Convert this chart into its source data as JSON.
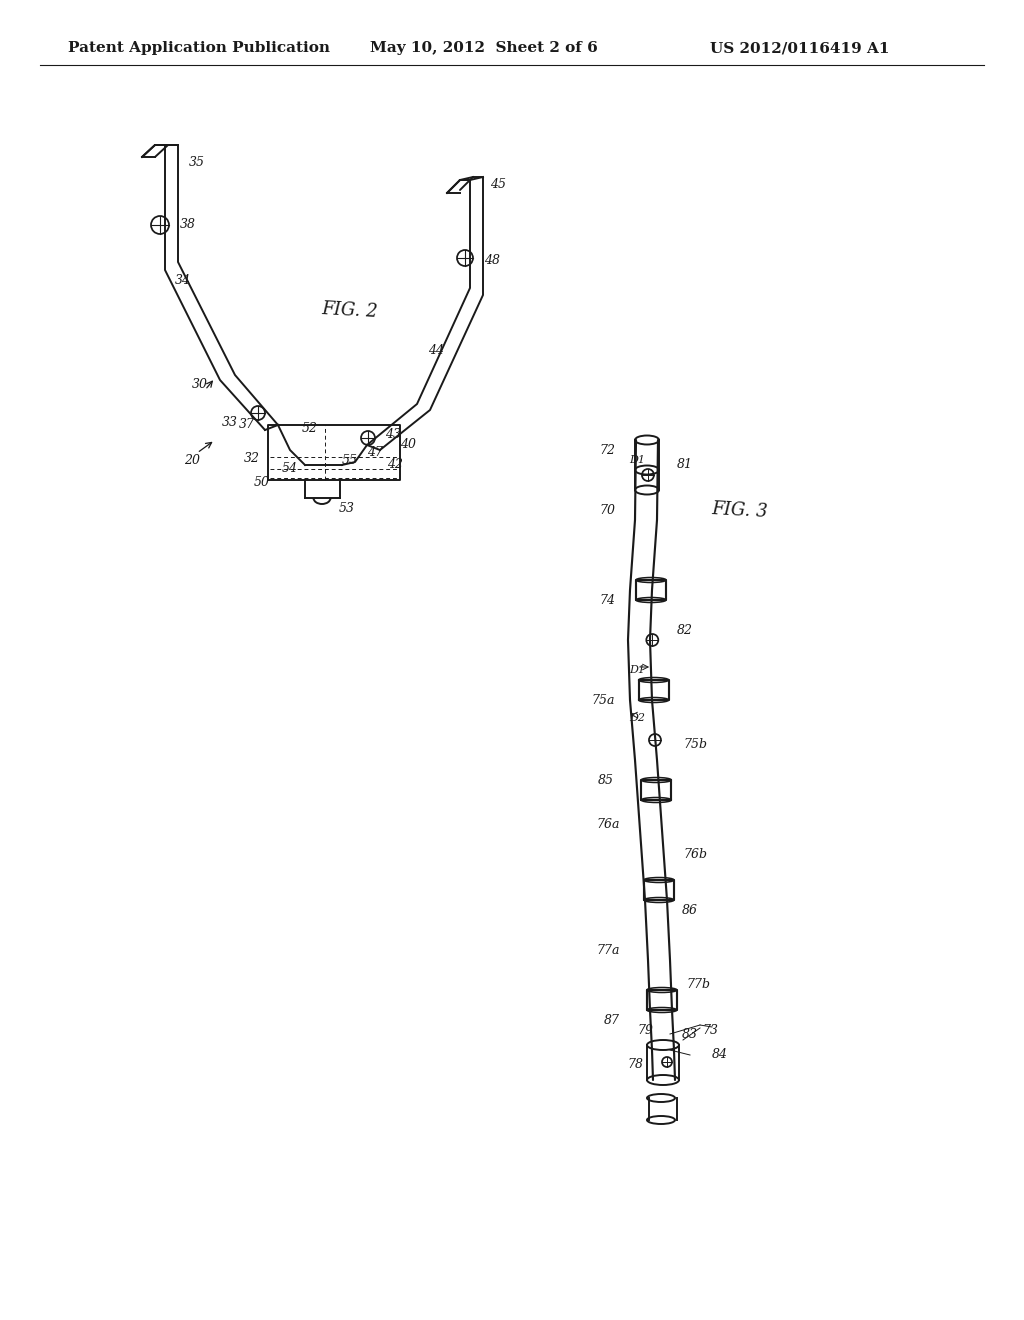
{
  "background_color": "#ffffff",
  "header_left": "Patent Application Publication",
  "header_center": "May 10, 2012  Sheet 2 of 6",
  "header_right": "US 2012/0116419 A1",
  "header_fontsize": 11,
  "fig2_label": "FIG. 2",
  "fig3_label": "FIG. 3",
  "line_color": "#1a1a1a",
  "line_width": 1.4,
  "annotation_fontsize": 9
}
